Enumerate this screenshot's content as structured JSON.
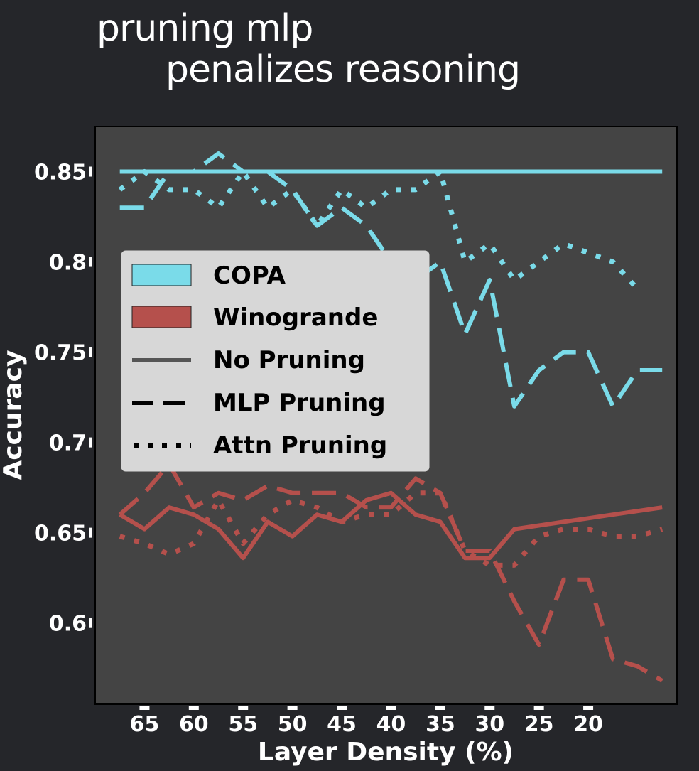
{
  "chart_data": {
    "type": "line",
    "title": [
      "pruning mlp",
      "penalizes reasoning"
    ],
    "xlabel": "Layer Density (%)",
    "ylabel": "Accuracy",
    "xlim": [
      70,
      11
    ],
    "ylim": [
      0.555,
      0.875
    ],
    "xticks": [
      65,
      60,
      55,
      50,
      45,
      40,
      35,
      30,
      25,
      20
    ],
    "yticks": [
      0.6,
      0.65,
      0.7,
      0.75,
      0.8,
      0.85
    ],
    "ytick_labels": [
      "0.6",
      "0.65",
      "0.7",
      "0.75",
      "0.8",
      "0.85"
    ],
    "grid": false,
    "legend_position": "center-left",
    "colors": {
      "copa": "#7adbe9",
      "winogrande": "#b5504c",
      "legend_style_line": "#555555"
    },
    "legend": [
      {
        "label": "COPA",
        "kind": "patch",
        "color": "#7adbe9"
      },
      {
        "label": "Winogrande",
        "kind": "patch",
        "color": "#b5504c"
      },
      {
        "label": "No Pruning",
        "kind": "line",
        "style": "solid"
      },
      {
        "label": "MLP Pruning",
        "kind": "line",
        "style": "dashed"
      },
      {
        "label": "Attn Pruning",
        "kind": "line",
        "style": "dotted"
      }
    ],
    "series": [
      {
        "dataset": "COPA",
        "style": "solid",
        "color": "#7adbe9",
        "x": [
          67.5,
          12.5
        ],
        "y": [
          0.85,
          0.85
        ]
      },
      {
        "dataset": "COPA",
        "style": "dashed",
        "color": "#7adbe9",
        "x": [
          67.5,
          65,
          62.5,
          60,
          57.5,
          55,
          52.5,
          50,
          47.5,
          45,
          42.5,
          40,
          37.5,
          35,
          32.5,
          30,
          27.5,
          25,
          22.5,
          20,
          17.5,
          15,
          12.5
        ],
        "y": [
          0.83,
          0.83,
          0.85,
          0.85,
          0.86,
          0.85,
          0.85,
          0.84,
          0.82,
          0.83,
          0.82,
          0.8,
          0.79,
          0.8,
          0.76,
          0.79,
          0.72,
          0.74,
          0.75,
          0.75,
          0.72,
          0.74,
          0.74
        ]
      },
      {
        "dataset": "COPA",
        "style": "dotted",
        "color": "#7adbe9",
        "x": [
          67.5,
          65,
          62.5,
          60,
          57.5,
          55,
          52.5,
          50,
          47.5,
          45,
          42.5,
          40,
          37.5,
          35,
          32.5,
          30,
          27.5,
          25,
          22.5,
          20,
          17.5,
          15
        ],
        "y": [
          0.84,
          0.85,
          0.84,
          0.84,
          0.83,
          0.85,
          0.83,
          0.84,
          0.82,
          0.84,
          0.83,
          0.84,
          0.84,
          0.85,
          0.8,
          0.81,
          0.79,
          0.8,
          0.81,
          0.805,
          0.8,
          0.785
        ]
      },
      {
        "dataset": "Winogrande",
        "style": "solid",
        "color": "#b5504c",
        "x": [
          67.5,
          65,
          62.5,
          60,
          57.5,
          55,
          52.5,
          50,
          47.5,
          45,
          42.5,
          40,
          37.5,
          35,
          32.5,
          30,
          27.5,
          25,
          22.5,
          20,
          17.5,
          15,
          12.5
        ],
        "y": [
          0.66,
          0.652,
          0.664,
          0.66,
          0.652,
          0.636,
          0.656,
          0.648,
          0.66,
          0.656,
          0.668,
          0.672,
          0.66,
          0.656,
          0.636,
          0.636,
          0.652,
          0.654,
          0.656,
          0.658,
          0.66,
          0.662,
          0.664
        ]
      },
      {
        "dataset": "Winogrande",
        "style": "dashed",
        "color": "#b5504c",
        "x": [
          67.5,
          65,
          62.5,
          60,
          57.5,
          55,
          52.5,
          50,
          47.5,
          45,
          42.5,
          40,
          37.5,
          35,
          32.5,
          30,
          27.5,
          25,
          22.5,
          20,
          17.5,
          15,
          12.5
        ],
        "y": [
          0.66,
          0.672,
          0.688,
          0.664,
          0.672,
          0.668,
          0.676,
          0.672,
          0.672,
          0.672,
          0.664,
          0.664,
          0.68,
          0.672,
          0.64,
          0.64,
          0.612,
          0.588,
          0.624,
          0.624,
          0.58,
          0.576,
          0.568
        ]
      },
      {
        "dataset": "Winogrande",
        "style": "dotted",
        "color": "#b5504c",
        "x": [
          67.5,
          65,
          62.5,
          60,
          57.5,
          55,
          52.5,
          50,
          47.5,
          45,
          42.5,
          40,
          37.5,
          35,
          32.5,
          30,
          27.5,
          25,
          22.5,
          20,
          17.5,
          15,
          12.5
        ],
        "y": [
          0.648,
          0.644,
          0.638,
          0.644,
          0.668,
          0.644,
          0.66,
          0.668,
          0.664,
          0.656,
          0.66,
          0.66,
          0.672,
          0.672,
          0.64,
          0.632,
          0.632,
          0.648,
          0.652,
          0.652,
          0.648,
          0.648,
          0.652
        ]
      }
    ]
  }
}
